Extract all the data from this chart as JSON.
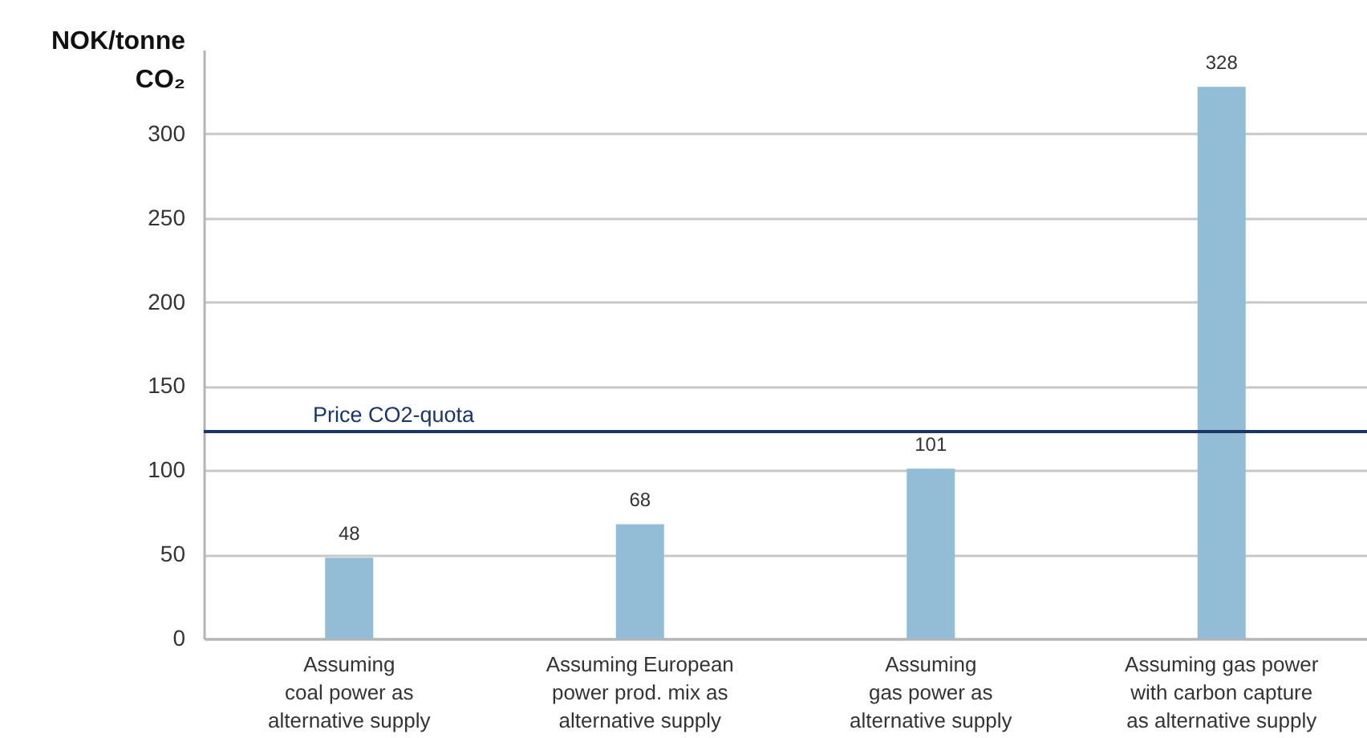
{
  "chart_data": {
    "type": "bar",
    "ylabel": "NOK/tonne CO₂",
    "categories": [
      "Assuming\ncoal power as\nalternative supply",
      "Assuming European\npower prod. mix as\nalternative supply",
      "Assuming\ngas power as\nalternative supply",
      "Assuming gas power\nwith carbon capture\nas alternative supply"
    ],
    "values": [
      48,
      68,
      101,
      328
    ],
    "color": "#93bcd6",
    "ylim": [
      0,
      350
    ],
    "yticks": [
      0,
      50,
      100,
      150,
      200,
      250,
      300
    ],
    "grid": "y",
    "data_labels": true,
    "ref_lines": [
      {
        "axis": "y",
        "value": 123,
        "label": "Price CO2-quota",
        "color": "#1b3564"
      }
    ]
  }
}
